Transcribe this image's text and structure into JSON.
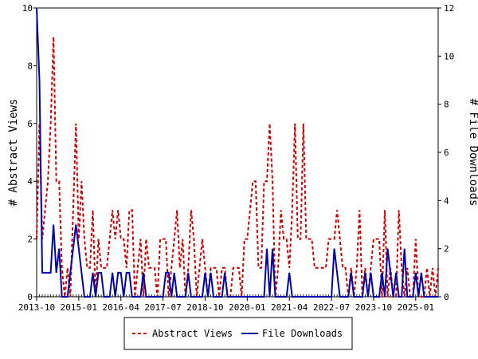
{
  "chart_data": {
    "type": "line",
    "title": "",
    "x_tick_labels": [
      "2013-10",
      "2015-01",
      "2016-04",
      "2017-07",
      "2018-10",
      "2020-01",
      "2021-04",
      "2022-07",
      "2023-10",
      "2025-01"
    ],
    "x_range": [
      "2013-10",
      "2025-09"
    ],
    "y_left": {
      "label": "# Abstract Views",
      "ylim": [
        0,
        10
      ],
      "ticks": [
        0,
        2,
        4,
        6,
        8,
        10
      ]
    },
    "y_right": {
      "label": "# File Downloads",
      "ylim": [
        0,
        12
      ],
      "ticks": [
        0,
        2,
        4,
        6,
        8,
        10,
        12
      ]
    },
    "grid": false,
    "legend_position": "bottom",
    "series": [
      {
        "name": "Abstract Views",
        "axis": "left",
        "color": "#cc0000",
        "style": "dashed",
        "points": [
          [
            "2013-10",
            2
          ],
          [
            "2013-11",
            6
          ],
          [
            "2013-12",
            2
          ],
          [
            "2014-01",
            3
          ],
          [
            "2014-02",
            4
          ],
          [
            "2014-03",
            6
          ],
          [
            "2014-04",
            9
          ],
          [
            "2014-05",
            4
          ],
          [
            "2014-06",
            4
          ],
          [
            "2014-07",
            1
          ],
          [
            "2014-08",
            0
          ],
          [
            "2014-09",
            1
          ],
          [
            "2014-10",
            0
          ],
          [
            "2014-11",
            3
          ],
          [
            "2014-12",
            6
          ],
          [
            "2015-01",
            2
          ],
          [
            "2015-02",
            4
          ],
          [
            "2015-03",
            2
          ],
          [
            "2015-04",
            1
          ],
          [
            "2015-05",
            1
          ],
          [
            "2015-06",
            3
          ],
          [
            "2015-07",
            0
          ],
          [
            "2015-08",
            2
          ],
          [
            "2015-09",
            1
          ],
          [
            "2015-10",
            1
          ],
          [
            "2015-11",
            1
          ],
          [
            "2015-12",
            2
          ],
          [
            "2016-01",
            3
          ],
          [
            "2016-02",
            2
          ],
          [
            "2016-03",
            3
          ],
          [
            "2016-04",
            2
          ],
          [
            "2016-05",
            2
          ],
          [
            "2016-06",
            1
          ],
          [
            "2016-07",
            3
          ],
          [
            "2016-08",
            3
          ],
          [
            "2016-09",
            0
          ],
          [
            "2016-10",
            1
          ],
          [
            "2016-11",
            2
          ],
          [
            "2016-12",
            0
          ],
          [
            "2017-01",
            2
          ],
          [
            "2017-02",
            1
          ],
          [
            "2017-03",
            1
          ],
          [
            "2017-04",
            1
          ],
          [
            "2017-05",
            0
          ],
          [
            "2017-06",
            2
          ],
          [
            "2017-07",
            2
          ],
          [
            "2017-08",
            2
          ],
          [
            "2017-09",
            0
          ],
          [
            "2017-10",
            1
          ],
          [
            "2017-11",
            2
          ],
          [
            "2017-12",
            3
          ],
          [
            "2018-01",
            1
          ],
          [
            "2018-02",
            2
          ],
          [
            "2018-03",
            0
          ],
          [
            "2018-04",
            1
          ],
          [
            "2018-05",
            3
          ],
          [
            "2018-06",
            2
          ],
          [
            "2018-07",
            0
          ],
          [
            "2018-08",
            1
          ],
          [
            "2018-09",
            2
          ],
          [
            "2018-10",
            1
          ],
          [
            "2018-11",
            0
          ],
          [
            "2018-12",
            1
          ],
          [
            "2019-01",
            1
          ],
          [
            "2019-02",
            1
          ],
          [
            "2019-03",
            0
          ],
          [
            "2019-04",
            1
          ],
          [
            "2019-05",
            1
          ],
          [
            "2019-06",
            0
          ],
          [
            "2019-07",
            0
          ],
          [
            "2019-08",
            1
          ],
          [
            "2019-09",
            1
          ],
          [
            "2019-10",
            1
          ],
          [
            "2019-11",
            0
          ],
          [
            "2019-12",
            2
          ],
          [
            "2020-01",
            2
          ],
          [
            "2020-02",
            3
          ],
          [
            "2020-03",
            4
          ],
          [
            "2020-04",
            4
          ],
          [
            "2020-05",
            1
          ],
          [
            "2020-06",
            1
          ],
          [
            "2020-07",
            4
          ],
          [
            "2020-08",
            4
          ],
          [
            "2020-09",
            6
          ],
          [
            "2020-10",
            4
          ],
          [
            "2020-11",
            0
          ],
          [
            "2020-12",
            1
          ],
          [
            "2021-01",
            3
          ],
          [
            "2021-02",
            2
          ],
          [
            "2021-03",
            2
          ],
          [
            "2021-04",
            1
          ],
          [
            "2021-05",
            3
          ],
          [
            "2021-06",
            6
          ],
          [
            "2021-07",
            2
          ],
          [
            "2021-08",
            2
          ],
          [
            "2021-09",
            6
          ],
          [
            "2021-10",
            2
          ],
          [
            "2021-11",
            2
          ],
          [
            "2021-12",
            2
          ],
          [
            "2022-01",
            1
          ],
          [
            "2022-02",
            1
          ],
          [
            "2022-03",
            1
          ],
          [
            "2022-04",
            1
          ],
          [
            "2022-05",
            1
          ],
          [
            "2022-06",
            2
          ],
          [
            "2022-07",
            2
          ],
          [
            "2022-08",
            2
          ],
          [
            "2022-09",
            3
          ],
          [
            "2022-10",
            2
          ],
          [
            "2022-11",
            1
          ],
          [
            "2022-12",
            1
          ],
          [
            "2023-01",
            0
          ],
          [
            "2023-02",
            1
          ],
          [
            "2023-03",
            0
          ],
          [
            "2023-04",
            1
          ],
          [
            "2023-05",
            3
          ],
          [
            "2023-06",
            0
          ],
          [
            "2023-07",
            1
          ],
          [
            "2023-08",
            0
          ],
          [
            "2023-09",
            1
          ],
          [
            "2023-10",
            2
          ],
          [
            "2023-11",
            2
          ],
          [
            "2023-12",
            2
          ],
          [
            "2024-01",
            0
          ],
          [
            "2024-02",
            3
          ],
          [
            "2024-03",
            0
          ],
          [
            "2024-04",
            1
          ],
          [
            "2024-05",
            0
          ],
          [
            "2024-06",
            0
          ],
          [
            "2024-07",
            3
          ],
          [
            "2024-08",
            1
          ],
          [
            "2024-09",
            0
          ],
          [
            "2024-10",
            1
          ],
          [
            "2024-11",
            0
          ],
          [
            "2024-12",
            0
          ],
          [
            "2025-01",
            2
          ],
          [
            "2025-02",
            0
          ],
          [
            "2025-03",
            0
          ],
          [
            "2025-04",
            0
          ],
          [
            "2025-05",
            1
          ],
          [
            "2025-06",
            0
          ],
          [
            "2025-07",
            1
          ],
          [
            "2025-08",
            0
          ],
          [
            "2025-09",
            1
          ]
        ]
      },
      {
        "name": "File Downloads",
        "axis": "right",
        "color": "#0000aa",
        "style": "solid",
        "points": [
          [
            "2013-10",
            12
          ],
          [
            "2013-11",
            9
          ],
          [
            "2013-12",
            1
          ],
          [
            "2014-01",
            1
          ],
          [
            "2014-02",
            1
          ],
          [
            "2014-03",
            1
          ],
          [
            "2014-04",
            3
          ],
          [
            "2014-05",
            1
          ],
          [
            "2014-06",
            2
          ],
          [
            "2014-07",
            0
          ],
          [
            "2014-08",
            0
          ],
          [
            "2014-09",
            0
          ],
          [
            "2014-10",
            1
          ],
          [
            "2014-11",
            2
          ],
          [
            "2014-12",
            3
          ],
          [
            "2015-01",
            2
          ],
          [
            "2015-02",
            1
          ],
          [
            "2015-03",
            0
          ],
          [
            "2015-04",
            0
          ],
          [
            "2015-05",
            0
          ],
          [
            "2015-06",
            1
          ],
          [
            "2015-07",
            0
          ],
          [
            "2015-08",
            1
          ],
          [
            "2015-09",
            1
          ],
          [
            "2015-10",
            0
          ],
          [
            "2015-11",
            0
          ],
          [
            "2015-12",
            0
          ],
          [
            "2016-01",
            1
          ],
          [
            "2016-02",
            0
          ],
          [
            "2016-03",
            1
          ],
          [
            "2016-04",
            1
          ],
          [
            "2016-05",
            0
          ],
          [
            "2016-06",
            1
          ],
          [
            "2016-07",
            1
          ],
          [
            "2016-08",
            0
          ],
          [
            "2016-09",
            0
          ],
          [
            "2016-10",
            0
          ],
          [
            "2016-11",
            0
          ],
          [
            "2016-12",
            1
          ],
          [
            "2017-01",
            0
          ],
          [
            "2017-02",
            0
          ],
          [
            "2017-03",
            0
          ],
          [
            "2017-04",
            0
          ],
          [
            "2017-05",
            0
          ],
          [
            "2017-06",
            0
          ],
          [
            "2017-07",
            0
          ],
          [
            "2017-08",
            1
          ],
          [
            "2017-09",
            1
          ],
          [
            "2017-10",
            0
          ],
          [
            "2017-11",
            1
          ],
          [
            "2017-12",
            0
          ],
          [
            "2018-01",
            0
          ],
          [
            "2018-02",
            0
          ],
          [
            "2018-03",
            0
          ],
          [
            "2018-04",
            1
          ],
          [
            "2018-05",
            0
          ],
          [
            "2018-06",
            0
          ],
          [
            "2018-07",
            0
          ],
          [
            "2018-08",
            0
          ],
          [
            "2018-09",
            0
          ],
          [
            "2018-10",
            1
          ],
          [
            "2018-11",
            0
          ],
          [
            "2018-12",
            1
          ],
          [
            "2019-01",
            0
          ],
          [
            "2019-02",
            0
          ],
          [
            "2019-03",
            0
          ],
          [
            "2019-04",
            0
          ],
          [
            "2019-05",
            1
          ],
          [
            "2019-06",
            0
          ],
          [
            "2019-07",
            0
          ],
          [
            "2019-08",
            0
          ],
          [
            "2019-09",
            0
          ],
          [
            "2019-10",
            0
          ],
          [
            "2019-11",
            0
          ],
          [
            "2019-12",
            0
          ],
          [
            "2020-01",
            0
          ],
          [
            "2020-02",
            0
          ],
          [
            "2020-03",
            0
          ],
          [
            "2020-04",
            0
          ],
          [
            "2020-05",
            0
          ],
          [
            "2020-06",
            0
          ],
          [
            "2020-07",
            0
          ],
          [
            "2020-08",
            2
          ],
          [
            "2020-09",
            0
          ],
          [
            "2020-10",
            2
          ],
          [
            "2020-11",
            0
          ],
          [
            "2020-12",
            0
          ],
          [
            "2021-01",
            0
          ],
          [
            "2021-02",
            0
          ],
          [
            "2021-03",
            0
          ],
          [
            "2021-04",
            1
          ],
          [
            "2021-05",
            0
          ],
          [
            "2021-06",
            0
          ],
          [
            "2021-07",
            0
          ],
          [
            "2021-08",
            0
          ],
          [
            "2021-09",
            0
          ],
          [
            "2021-10",
            0
          ],
          [
            "2021-11",
            0
          ],
          [
            "2021-12",
            0
          ],
          [
            "2022-01",
            0
          ],
          [
            "2022-02",
            0
          ],
          [
            "2022-03",
            0
          ],
          [
            "2022-04",
            0
          ],
          [
            "2022-05",
            0
          ],
          [
            "2022-06",
            0
          ],
          [
            "2022-07",
            0
          ],
          [
            "2022-08",
            2
          ],
          [
            "2022-09",
            1
          ],
          [
            "2022-10",
            0
          ],
          [
            "2022-11",
            0
          ],
          [
            "2022-12",
            0
          ],
          [
            "2023-01",
            0
          ],
          [
            "2023-02",
            1
          ],
          [
            "2023-03",
            0
          ],
          [
            "2023-04",
            0
          ],
          [
            "2023-05",
            0
          ],
          [
            "2023-06",
            0
          ],
          [
            "2023-07",
            1
          ],
          [
            "2023-08",
            0
          ],
          [
            "2023-09",
            1
          ],
          [
            "2023-10",
            0
          ],
          [
            "2023-11",
            0
          ],
          [
            "2023-12",
            0
          ],
          [
            "2024-01",
            1
          ],
          [
            "2024-02",
            0
          ],
          [
            "2024-03",
            2
          ],
          [
            "2024-04",
            1
          ],
          [
            "2024-05",
            0
          ],
          [
            "2024-06",
            1
          ],
          [
            "2024-07",
            0
          ],
          [
            "2024-08",
            0
          ],
          [
            "2024-09",
            2
          ],
          [
            "2024-10",
            0
          ],
          [
            "2024-11",
            0
          ],
          [
            "2024-12",
            0
          ],
          [
            "2025-01",
            1
          ],
          [
            "2025-02",
            0
          ],
          [
            "2025-03",
            1
          ],
          [
            "2025-04",
            0
          ],
          [
            "2025-05",
            0
          ],
          [
            "2025-06",
            0
          ],
          [
            "2025-07",
            0
          ],
          [
            "2025-08",
            0
          ],
          [
            "2025-09",
            0
          ]
        ]
      }
    ]
  }
}
